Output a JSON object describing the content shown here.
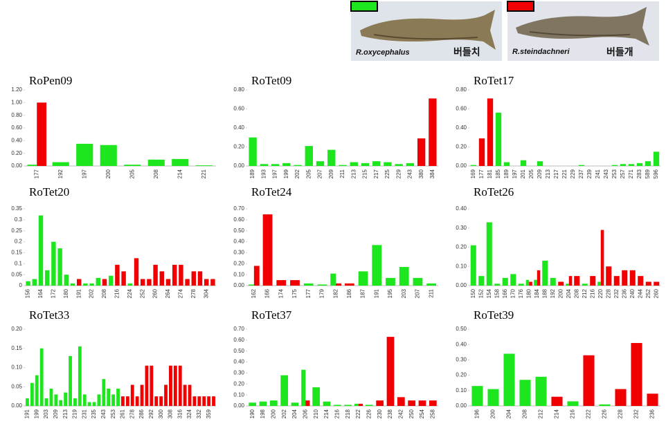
{
  "legend": [
    {
      "color": "#1ee61e",
      "species": "R.oxycephalus",
      "korean_name": "버들치"
    },
    {
      "color": "#f00000",
      "species": "R.steindachneri",
      "korean_name": "버들개"
    }
  ],
  "chart_data": [
    {
      "type": "bar",
      "title": "RoPen09",
      "categories": [
        "177",
        "192",
        "197",
        "200",
        "205",
        "208",
        "214",
        "221"
      ],
      "series": [
        {
          "color": "#1ee61e",
          "values": [
            0.02,
            0.06,
            0.35,
            0.33,
            0.02,
            0.1,
            0.11,
            0.01
          ]
        },
        {
          "color": "#f00000",
          "values": [
            1.0,
            null,
            null,
            null,
            null,
            null,
            null,
            null
          ]
        }
      ],
      "ylim": [
        0,
        1.2
      ],
      "yticks": [
        {
          "value": 0,
          "label": "0.00"
        },
        {
          "value": 0.2,
          "label": "0.20"
        },
        {
          "value": 0.4,
          "label": "0.40"
        },
        {
          "value": 0.6,
          "label": "0.60"
        },
        {
          "value": 0.8,
          "label": "0.80"
        },
        {
          "value": 1.0,
          "label": "1.00"
        },
        {
          "value": 1.2,
          "label": "1.20"
        }
      ]
    },
    {
      "type": "bar",
      "title": "RoTet09",
      "categories": [
        "189",
        "193",
        "197",
        "199",
        "202",
        "205",
        "207",
        "209",
        "211",
        "213",
        "215",
        "217",
        "225",
        "229",
        "243",
        "380",
        "384"
      ],
      "series": [
        {
          "color": "#1ee61e",
          "values": [
            0.3,
            0.02,
            0.02,
            0.03,
            0.01,
            0.21,
            0.05,
            0.17,
            0.01,
            0.04,
            0.03,
            0.05,
            0.04,
            0.02,
            0.03,
            null,
            null
          ]
        },
        {
          "color": "#f00000",
          "values": [
            null,
            null,
            null,
            null,
            null,
            null,
            null,
            null,
            null,
            null,
            null,
            null,
            null,
            null,
            null,
            0.29,
            0.71
          ]
        }
      ],
      "ylim": [
        0,
        0.8
      ],
      "yticks": [
        {
          "value": 0,
          "label": "0.00"
        },
        {
          "value": 0.2,
          "label": "0.20"
        },
        {
          "value": 0.4,
          "label": "0.40"
        },
        {
          "value": 0.6,
          "label": "0.60"
        },
        {
          "value": 0.8,
          "label": "0.80"
        }
      ]
    },
    {
      "type": "bar",
      "title": "RoTet17",
      "categories": [
        "169",
        "177",
        "181",
        "185",
        "189",
        "197",
        "201",
        "205",
        "209",
        "213",
        "217",
        "221",
        "229",
        "237",
        "239",
        "241",
        "243",
        "253",
        "257",
        "271",
        "283",
        "589",
        "596"
      ],
      "series": [
        {
          "color": "#1ee61e",
          "values": [
            0.01,
            null,
            null,
            0.56,
            0.04,
            null,
            0.06,
            null,
            0.05,
            null,
            null,
            null,
            null,
            0.01,
            null,
            null,
            null,
            0.01,
            0.02,
            0.02,
            0.03,
            0.05,
            0.15
          ]
        },
        {
          "color": "#f00000",
          "values": [
            null,
            0.29,
            0.71,
            null,
            null,
            null,
            null,
            null,
            null,
            null,
            null,
            null,
            null,
            null,
            null,
            null,
            null,
            null,
            null,
            null,
            null,
            null,
            null
          ]
        }
      ],
      "ylim": [
        0,
        0.8
      ],
      "yticks": [
        {
          "value": 0,
          "label": "0.00"
        },
        {
          "value": 0.2,
          "label": "0.20"
        },
        {
          "value": 0.4,
          "label": "0.40"
        },
        {
          "value": 0.6,
          "label": "0.60"
        },
        {
          "value": 0.8,
          "label": "0.80"
        }
      ]
    },
    {
      "type": "bar",
      "title": "RoTet20",
      "categories": [
        "156",
        null,
        "164",
        null,
        "172",
        null,
        "180",
        null,
        "191",
        null,
        "202",
        null,
        "208",
        null,
        "216",
        null,
        "224",
        null,
        "252",
        null,
        "260",
        null,
        "264",
        null,
        "274",
        null,
        "278",
        null,
        "304",
        null
      ],
      "series": [
        {
          "color": "#1ee61e",
          "values": [
            0.02,
            0.03,
            0.32,
            0.07,
            0.2,
            0.17,
            0.05,
            0.01,
            null,
            0.01,
            0.01,
            0.035,
            null,
            0.045,
            null,
            null,
            0.01,
            null,
            null,
            null,
            null,
            null,
            null,
            null,
            null,
            null,
            null,
            null,
            null,
            null
          ]
        },
        {
          "color": "#f00000",
          "values": [
            null,
            null,
            null,
            null,
            null,
            null,
            null,
            null,
            0.03,
            null,
            null,
            null,
            0.03,
            null,
            0.095,
            0.065,
            null,
            0.125,
            0.03,
            0.03,
            0.095,
            0.065,
            0.03,
            0.095,
            0.095,
            0.03,
            0.065,
            0.065,
            0.03,
            0.03
          ]
        }
      ],
      "ylim": [
        0,
        0.35
      ],
      "yticks": [
        0,
        0.05,
        0.1,
        0.15,
        0.2,
        0.25,
        0.3,
        0.35
      ]
    },
    {
      "type": "bar",
      "title": "RoTet24",
      "categories": [
        "162",
        "166",
        "174",
        "175",
        "177",
        "179",
        "182",
        "186",
        "187",
        "191",
        "195",
        "203",
        "207",
        "211"
      ],
      "series": [
        {
          "color": "#1ee61e",
          "values": [
            0.01,
            null,
            null,
            null,
            0.02,
            0.01,
            0.11,
            null,
            0.13,
            0.37,
            0.07,
            0.17,
            0.07,
            0.02
          ]
        },
        {
          "color": "#f00000",
          "values": [
            0.18,
            0.65,
            0.05,
            0.05,
            null,
            null,
            0.02,
            0.02,
            null,
            null,
            null,
            null,
            null,
            null
          ]
        }
      ],
      "ylim": [
        0,
        0.7
      ],
      "yticks": [
        {
          "value": 0,
          "label": "0.00"
        },
        {
          "value": 0.1,
          "label": "0.10"
        },
        {
          "value": 0.2,
          "label": "0.20"
        },
        {
          "value": 0.3,
          "label": "0.30"
        },
        {
          "value": 0.4,
          "label": "0.40"
        },
        {
          "value": 0.5,
          "label": "0.50"
        },
        {
          "value": 0.6,
          "label": "0.60"
        },
        {
          "value": 0.7,
          "label": "0.70"
        }
      ]
    },
    {
      "type": "bar",
      "title": "RoTet26",
      "categories": [
        "150",
        "152",
        "154",
        "158",
        "166",
        "170",
        "176",
        "180",
        "184",
        "188",
        "192",
        "200",
        "204",
        "208",
        "212",
        "216",
        "220",
        "228",
        "232",
        "236",
        "240",
        "244",
        "252",
        "260"
      ],
      "series": [
        {
          "color": "#1ee61e",
          "values": [
            0.21,
            0.05,
            0.33,
            0.01,
            0.04,
            0.06,
            0.01,
            0.03,
            0.03,
            0.13,
            0.04,
            null,
            0.01,
            null,
            0.01,
            null,
            0.02,
            null,
            null,
            null,
            null,
            null,
            null,
            null
          ]
        },
        {
          "color": "#f00000",
          "values": [
            null,
            null,
            null,
            null,
            null,
            null,
            null,
            0.02,
            0.08,
            null,
            null,
            0.02,
            0.05,
            0.05,
            null,
            0.05,
            0.29,
            0.1,
            0.05,
            0.08,
            0.08,
            0.05,
            0.02,
            0.02
          ]
        }
      ],
      "ylim": [
        0,
        0.4
      ],
      "yticks": [
        {
          "value": 0,
          "label": "0.00"
        },
        {
          "value": 0.1,
          "label": "0.10"
        },
        {
          "value": 0.2,
          "label": "0.20"
        },
        {
          "value": 0.3,
          "label": "0.30"
        },
        {
          "value": 0.4,
          "label": "0.40"
        }
      ]
    },
    {
      "type": "bar",
      "title": "RoTet33",
      "categories": [
        "191",
        null,
        "199",
        null,
        "203",
        null,
        "209",
        null,
        "213",
        null,
        "219",
        null,
        "231",
        null,
        "235",
        null,
        "243",
        null,
        "253",
        null,
        "261",
        null,
        "278",
        null,
        "286",
        null,
        "292",
        null,
        "300",
        null,
        "308",
        null,
        "316",
        null,
        "324",
        null,
        "332",
        null,
        "359",
        null
      ],
      "series": [
        {
          "color": "#1ee61e",
          "values": [
            0.02,
            0.06,
            0.08,
            0.15,
            0.02,
            0.045,
            0.03,
            0.015,
            0.035,
            0.13,
            0.02,
            0.155,
            0.03,
            0.01,
            0.01,
            0.03,
            0.07,
            0.045,
            0.03,
            0.045,
            null,
            null,
            null,
            null,
            null,
            null,
            null,
            null,
            null,
            null,
            null,
            null,
            null,
            null,
            null,
            null,
            null,
            null,
            null,
            null
          ]
        },
        {
          "color": "#f00000",
          "values": [
            null,
            null,
            null,
            null,
            null,
            null,
            null,
            null,
            null,
            null,
            null,
            null,
            null,
            null,
            null,
            null,
            null,
            null,
            null,
            null,
            0.025,
            0.025,
            0.055,
            0.025,
            0.055,
            0.105,
            0.105,
            0.025,
            0.025,
            0.055,
            0.105,
            0.105,
            0.105,
            0.055,
            0.055,
            0.025,
            0.025,
            0.025,
            0.025,
            0.025
          ]
        }
      ],
      "ylim": [
        0,
        0.2
      ],
      "yticks": [
        {
          "value": 0,
          "label": "0.00"
        },
        {
          "value": 0.05,
          "label": "0.05"
        },
        {
          "value": 0.1,
          "label": "0.10"
        },
        {
          "value": 0.15,
          "label": "0.15"
        },
        {
          "value": 0.2,
          "label": "0.20"
        }
      ]
    },
    {
      "type": "bar",
      "title": "RoTet37",
      "categories": [
        "190",
        "198",
        "200",
        "202",
        "204",
        "206",
        "210",
        "214",
        "216",
        "218",
        "222",
        "226",
        "230",
        "238",
        "242",
        "250",
        "254",
        "258"
      ],
      "series": [
        {
          "color": "#1ee61e",
          "values": [
            0.03,
            0.04,
            0.05,
            0.28,
            0.03,
            0.33,
            0.17,
            0.04,
            0.01,
            0.01,
            0.02,
            0.01,
            null,
            null,
            null,
            null,
            null,
            null
          ]
        },
        {
          "color": "#f00000",
          "values": [
            null,
            null,
            null,
            null,
            null,
            0.05,
            null,
            null,
            null,
            null,
            0.02,
            null,
            0.05,
            0.63,
            0.08,
            0.05,
            0.05,
            0.05
          ]
        }
      ],
      "ylim": [
        0,
        0.7
      ],
      "yticks": [
        {
          "value": 0,
          "label": "0.00"
        },
        {
          "value": 0.1,
          "label": "0.10"
        },
        {
          "value": 0.2,
          "label": "0.20"
        },
        {
          "value": 0.3,
          "label": "0.30"
        },
        {
          "value": 0.4,
          "label": "0.40"
        },
        {
          "value": 0.5,
          "label": "0.50"
        },
        {
          "value": 0.6,
          "label": "0.60"
        },
        {
          "value": 0.7,
          "label": "0.70"
        }
      ]
    },
    {
      "type": "bar",
      "title": "RoTet39",
      "categories": [
        "196",
        "200",
        "204",
        "208",
        "212",
        "214",
        "216",
        "222",
        "226",
        "228",
        "232",
        "236"
      ],
      "series": [
        {
          "color": "#1ee61e",
          "values": [
            0.13,
            0.11,
            0.34,
            0.17,
            0.19,
            null,
            0.03,
            null,
            0.01,
            null,
            null,
            null
          ]
        },
        {
          "color": "#f00000",
          "values": [
            null,
            null,
            null,
            null,
            null,
            0.06,
            null,
            0.33,
            null,
            0.11,
            0.41,
            0.08
          ]
        }
      ],
      "ylim": [
        0,
        0.5
      ],
      "yticks": [
        {
          "value": 0,
          "label": "0.00"
        },
        {
          "value": 0.1,
          "label": "0.10"
        },
        {
          "value": 0.2,
          "label": "0.20"
        },
        {
          "value": 0.3,
          "label": "0.30"
        },
        {
          "value": 0.4,
          "label": "0.40"
        },
        {
          "value": 0.5,
          "label": "0.50"
        }
      ]
    }
  ]
}
